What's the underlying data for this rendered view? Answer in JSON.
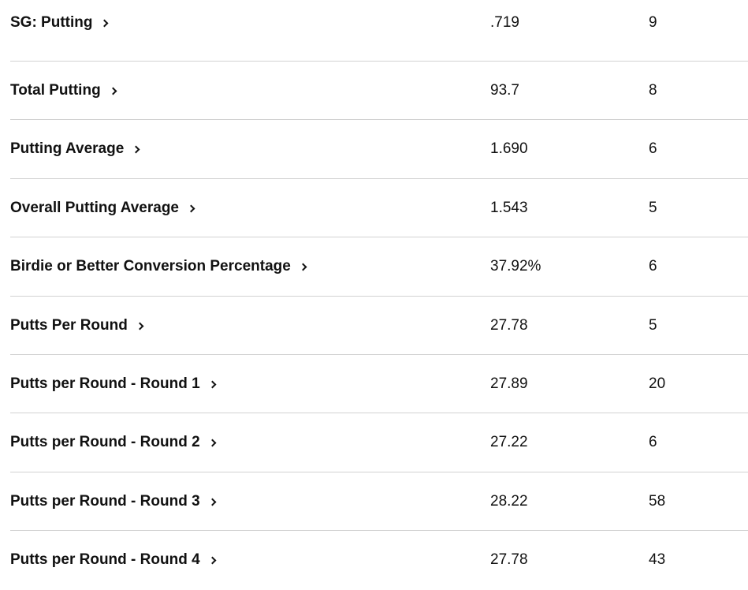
{
  "stats": [
    {
      "name": "SG: Putting",
      "value": ".719",
      "rank": "9"
    },
    {
      "name": "Total Putting",
      "value": "93.7",
      "rank": "8"
    },
    {
      "name": "Putting Average",
      "value": "1.690",
      "rank": "6"
    },
    {
      "name": "Overall Putting Average",
      "value": "1.543",
      "rank": "5"
    },
    {
      "name": "Birdie or Better Conversion Percentage",
      "value": "37.92%",
      "rank": "6"
    },
    {
      "name": "Putts Per Round",
      "value": "27.78",
      "rank": "5"
    },
    {
      "name": "Putts per Round - Round 1",
      "value": "27.89",
      "rank": "20"
    },
    {
      "name": "Putts per Round - Round 2",
      "value": "27.22",
      "rank": "6"
    },
    {
      "name": "Putts per Round - Round 3",
      "value": "28.22",
      "rank": "58"
    },
    {
      "name": "Putts per Round - Round 4",
      "value": "27.78",
      "rank": "43"
    }
  ],
  "icons": {
    "row_link": "chevron-right-icon"
  }
}
